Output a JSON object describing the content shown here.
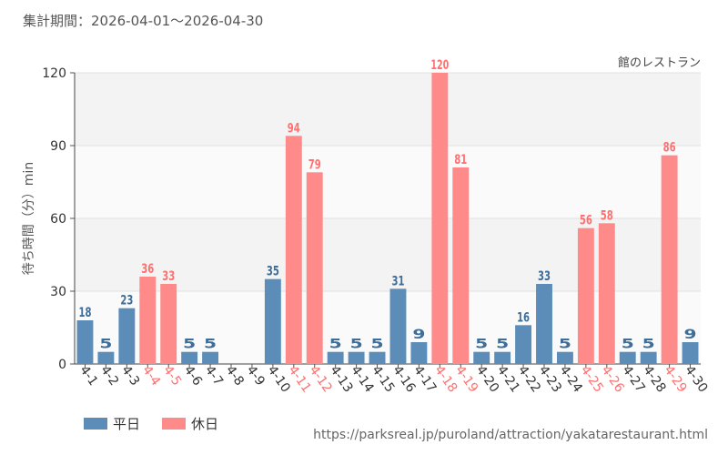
{
  "period_label": "集計期間：2026-04-01～2026-04-30",
  "source_url": "https://parksreal.jp/puroland/attraction/yakatarestaurant.html",
  "legend": [
    {
      "label": "平日",
      "color": "#5b8db8"
    },
    {
      "label": "休日",
      "color": "#ff8a8a"
    }
  ],
  "colors": {
    "weekday": "#5b8db8",
    "holiday": "#ff8a8a",
    "holiday_text": "#ff7070",
    "weekday_text": "#3d6e99"
  },
  "chart_data": {
    "type": "bar",
    "title": "館のレストラン",
    "ylabel": "待ち時間（分）min",
    "xlabel": "",
    "ylim": [
      0,
      120
    ],
    "yticks": [
      0,
      30,
      60,
      90,
      120
    ],
    "grid": true,
    "legend_position": "bottom-left",
    "categories": [
      "4-1",
      "4-2",
      "4-3",
      "4-4",
      "4-5",
      "4-6",
      "4-7",
      "4-8",
      "4-9",
      "4-10",
      "4-11",
      "4-12",
      "4-13",
      "4-14",
      "4-15",
      "4-16",
      "4-17",
      "4-18",
      "4-19",
      "4-20",
      "4-21",
      "4-22",
      "4-23",
      "4-24",
      "4-25",
      "4-26",
      "4-27",
      "4-28",
      "4-29",
      "4-30"
    ],
    "values": [
      18,
      5,
      23,
      36,
      33,
      5,
      5,
      null,
      null,
      35,
      94,
      79,
      5,
      5,
      5,
      31,
      9,
      120,
      81,
      5,
      5,
      16,
      33,
      5,
      56,
      58,
      5,
      5,
      86,
      9
    ],
    "day_type": [
      "平日",
      "平日",
      "平日",
      "休日",
      "休日",
      "平日",
      "平日",
      "平日",
      "平日",
      "平日",
      "休日",
      "休日",
      "平日",
      "平日",
      "平日",
      "平日",
      "平日",
      "休日",
      "休日",
      "平日",
      "平日",
      "平日",
      "平日",
      "平日",
      "休日",
      "休日",
      "平日",
      "平日",
      "休日",
      "平日"
    ],
    "series": [
      {
        "name": "平日"
      },
      {
        "name": "休日"
      }
    ]
  }
}
